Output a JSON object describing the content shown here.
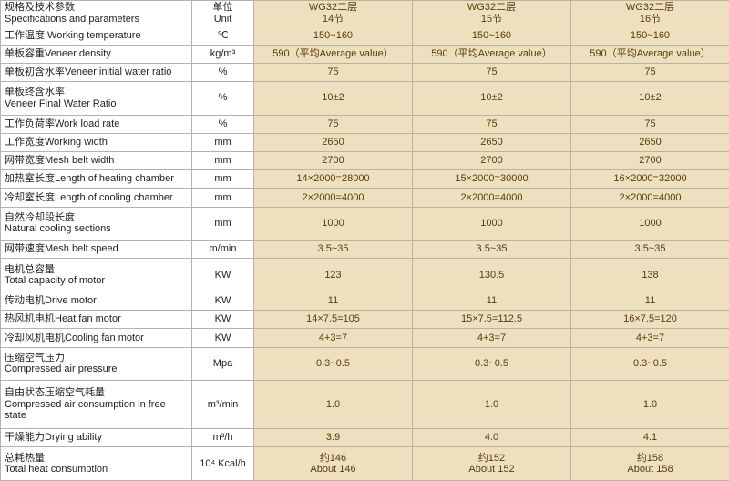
{
  "colors": {
    "value_bg": "#eedfbf",
    "value_fg": "#5a3a10",
    "border": "#b8b2a7",
    "param_fg": "#222222",
    "page_bg": "#ffffff"
  },
  "header": {
    "param": "规格及技术参数\nSpecifications and parameters",
    "unit": "单位\nUnit",
    "col1": "WG32二层\n14节",
    "col2": "WG32二层\n15节",
    "col3": "WG32二层\n16节"
  },
  "rows": [
    {
      "param": "工作温度 Working temperature",
      "unit": "℃",
      "v1": "150~160",
      "v2": "150~160",
      "v3": "150~160"
    },
    {
      "param": "单板容重Veneer density",
      "unit": "kg/m³",
      "v1": "590（平均Average value）",
      "v2": "590（平均Average value）",
      "v3": "590（平均Average value）"
    },
    {
      "param": "单板初含水率Veneer initial water ratio",
      "unit": "%",
      "v1": "75",
      "v2": "75",
      "v3": "75"
    },
    {
      "param": "单板终含水率\nVeneer Final Water Ratio",
      "unit": "%",
      "v1": "10±2",
      "v2": "10±2",
      "v3": "10±2"
    },
    {
      "param": "工作负荷率Work load rate",
      "unit": "%",
      "v1": "75",
      "v2": "75",
      "v3": "75"
    },
    {
      "param": "工作宽度Working width",
      "unit": "mm",
      "v1": "2650",
      "v2": "2650",
      "v3": "2650"
    },
    {
      "param": "网带宽度Mesh belt width",
      "unit": "mm",
      "v1": "2700",
      "v2": "2700",
      "v3": "2700"
    },
    {
      "param": "加热室长度Length of heating chamber",
      "unit": "mm",
      "v1": "14×2000=28000",
      "v2": "15×2000=30000",
      "v3": "16×2000=32000"
    },
    {
      "param": "冷却室长度Length of cooling chamber",
      "unit": "mm",
      "v1": "2×2000=4000",
      "v2": "2×2000=4000",
      "v3": "2×2000=4000"
    },
    {
      "param": "自然冷却段长度\nNatural cooling sections",
      "unit": "mm",
      "v1": "1000",
      "v2": "1000",
      "v3": "1000"
    },
    {
      "param": "网带速度Mesh belt speed",
      "unit": "m/min",
      "v1": "3.5~35",
      "v2": "3.5~35",
      "v3": "3.5~35"
    },
    {
      "param": "电机总容量\nTotal capacity of motor",
      "unit": "KW",
      "v1": "123",
      "v2": "130.5",
      "v3": "138"
    },
    {
      "param": "传动电机Drive motor",
      "unit": "KW",
      "v1": "11",
      "v2": "11",
      "v3": "11"
    },
    {
      "param": "热风机电机Heat fan motor",
      "unit": "KW",
      "v1": "14×7.5=105",
      "v2": "15×7.5=112.5",
      "v3": "16×7.5=120"
    },
    {
      "param": "冷却风机电机Cooling fan motor",
      "unit": "KW",
      "v1": "4+3=7",
      "v2": "4+3=7",
      "v3": "4+3=7"
    },
    {
      "param": "压缩空气压力\nCompressed air pressure",
      "unit": "Mpa",
      "v1": "0.3~0.5",
      "v2": "0.3~0.5",
      "v3": "0.3~0.5"
    },
    {
      "param": "自由状态压缩空气耗量\nCompressed air consumption in free state",
      "unit": "m³/min",
      "v1": "1.0",
      "v2": "1.0",
      "v3": "1.0"
    },
    {
      "param": "干燥能力Drying ability",
      "unit": "m³/h",
      "v1": "3.9",
      "v2": "4.0",
      "v3": "4.1"
    },
    {
      "param": "总耗热量\nTotal heat consumption",
      "unit": "10⁴ Kcal/h",
      "v1": "约146\nAbout 146",
      "v2": "约152\nAbout 152",
      "v3": "约158\nAbout 158"
    }
  ]
}
